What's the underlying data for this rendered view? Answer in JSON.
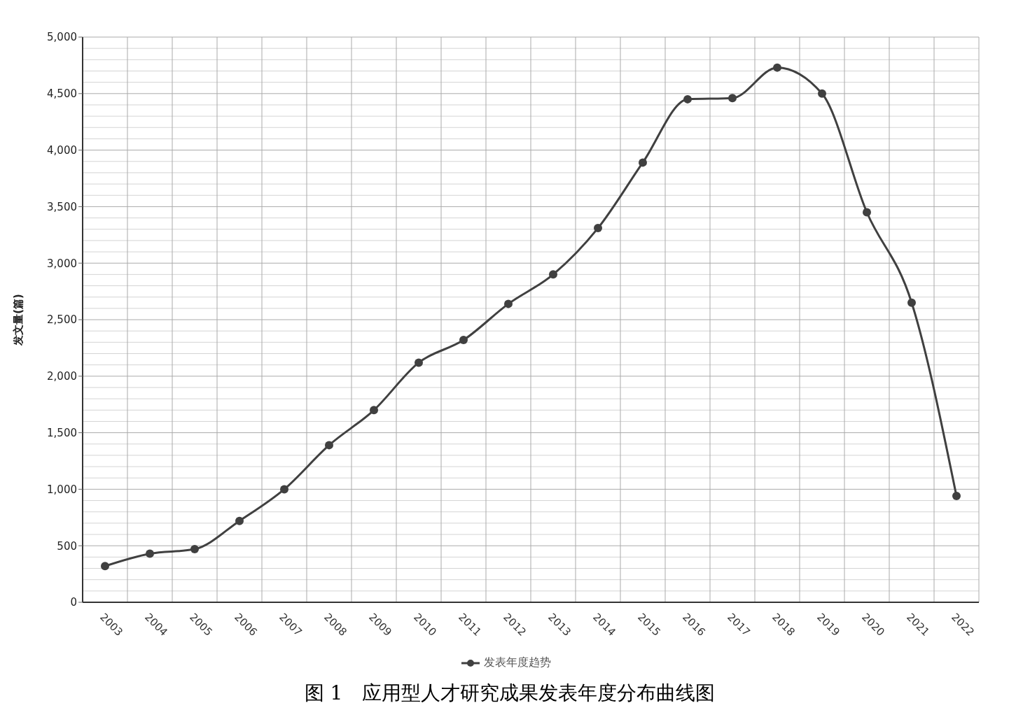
{
  "chart_data": {
    "type": "line",
    "title": "图 1　应用型人才研究成果发表年度分布曲线图",
    "ylabel": "发文量(篇)",
    "categories": [
      "2003",
      "2004",
      "2005",
      "2006",
      "2007",
      "2008",
      "2009",
      "2010",
      "2011",
      "2012",
      "2013",
      "2014",
      "2015",
      "2016",
      "2017",
      "2018",
      "2019",
      "2020",
      "2021",
      "2022"
    ],
    "series": [
      {
        "name": "发表年度趋势",
        "color": "#404040",
        "values": [
          320,
          430,
          470,
          720,
          1000,
          1390,
          1700,
          2120,
          2320,
          2640,
          2900,
          3310,
          3890,
          4450,
          4460,
          4730,
          4500,
          3450,
          2650,
          940
        ]
      }
    ],
    "ylim": [
      0,
      5000
    ],
    "yticks": [
      0,
      500,
      {
        "value": 1000,
        "label": "1,000"
      },
      {
        "value": 1500,
        "label": "1,500"
      },
      {
        "value": 2000,
        "label": "2,000"
      },
      {
        "value": 2500,
        "label": "2,500"
      },
      {
        "value": 3000,
        "label": "3,000"
      },
      {
        "value": 3500,
        "label": "3,500"
      },
      {
        "value": 4000,
        "label": "4,000"
      },
      {
        "value": 4500,
        "label": "4,500"
      },
      {
        "value": 5000,
        "label": "5,000"
      }
    ],
    "grid": true,
    "legend": "bottom",
    "marker": "circle",
    "line_style": "solid"
  }
}
